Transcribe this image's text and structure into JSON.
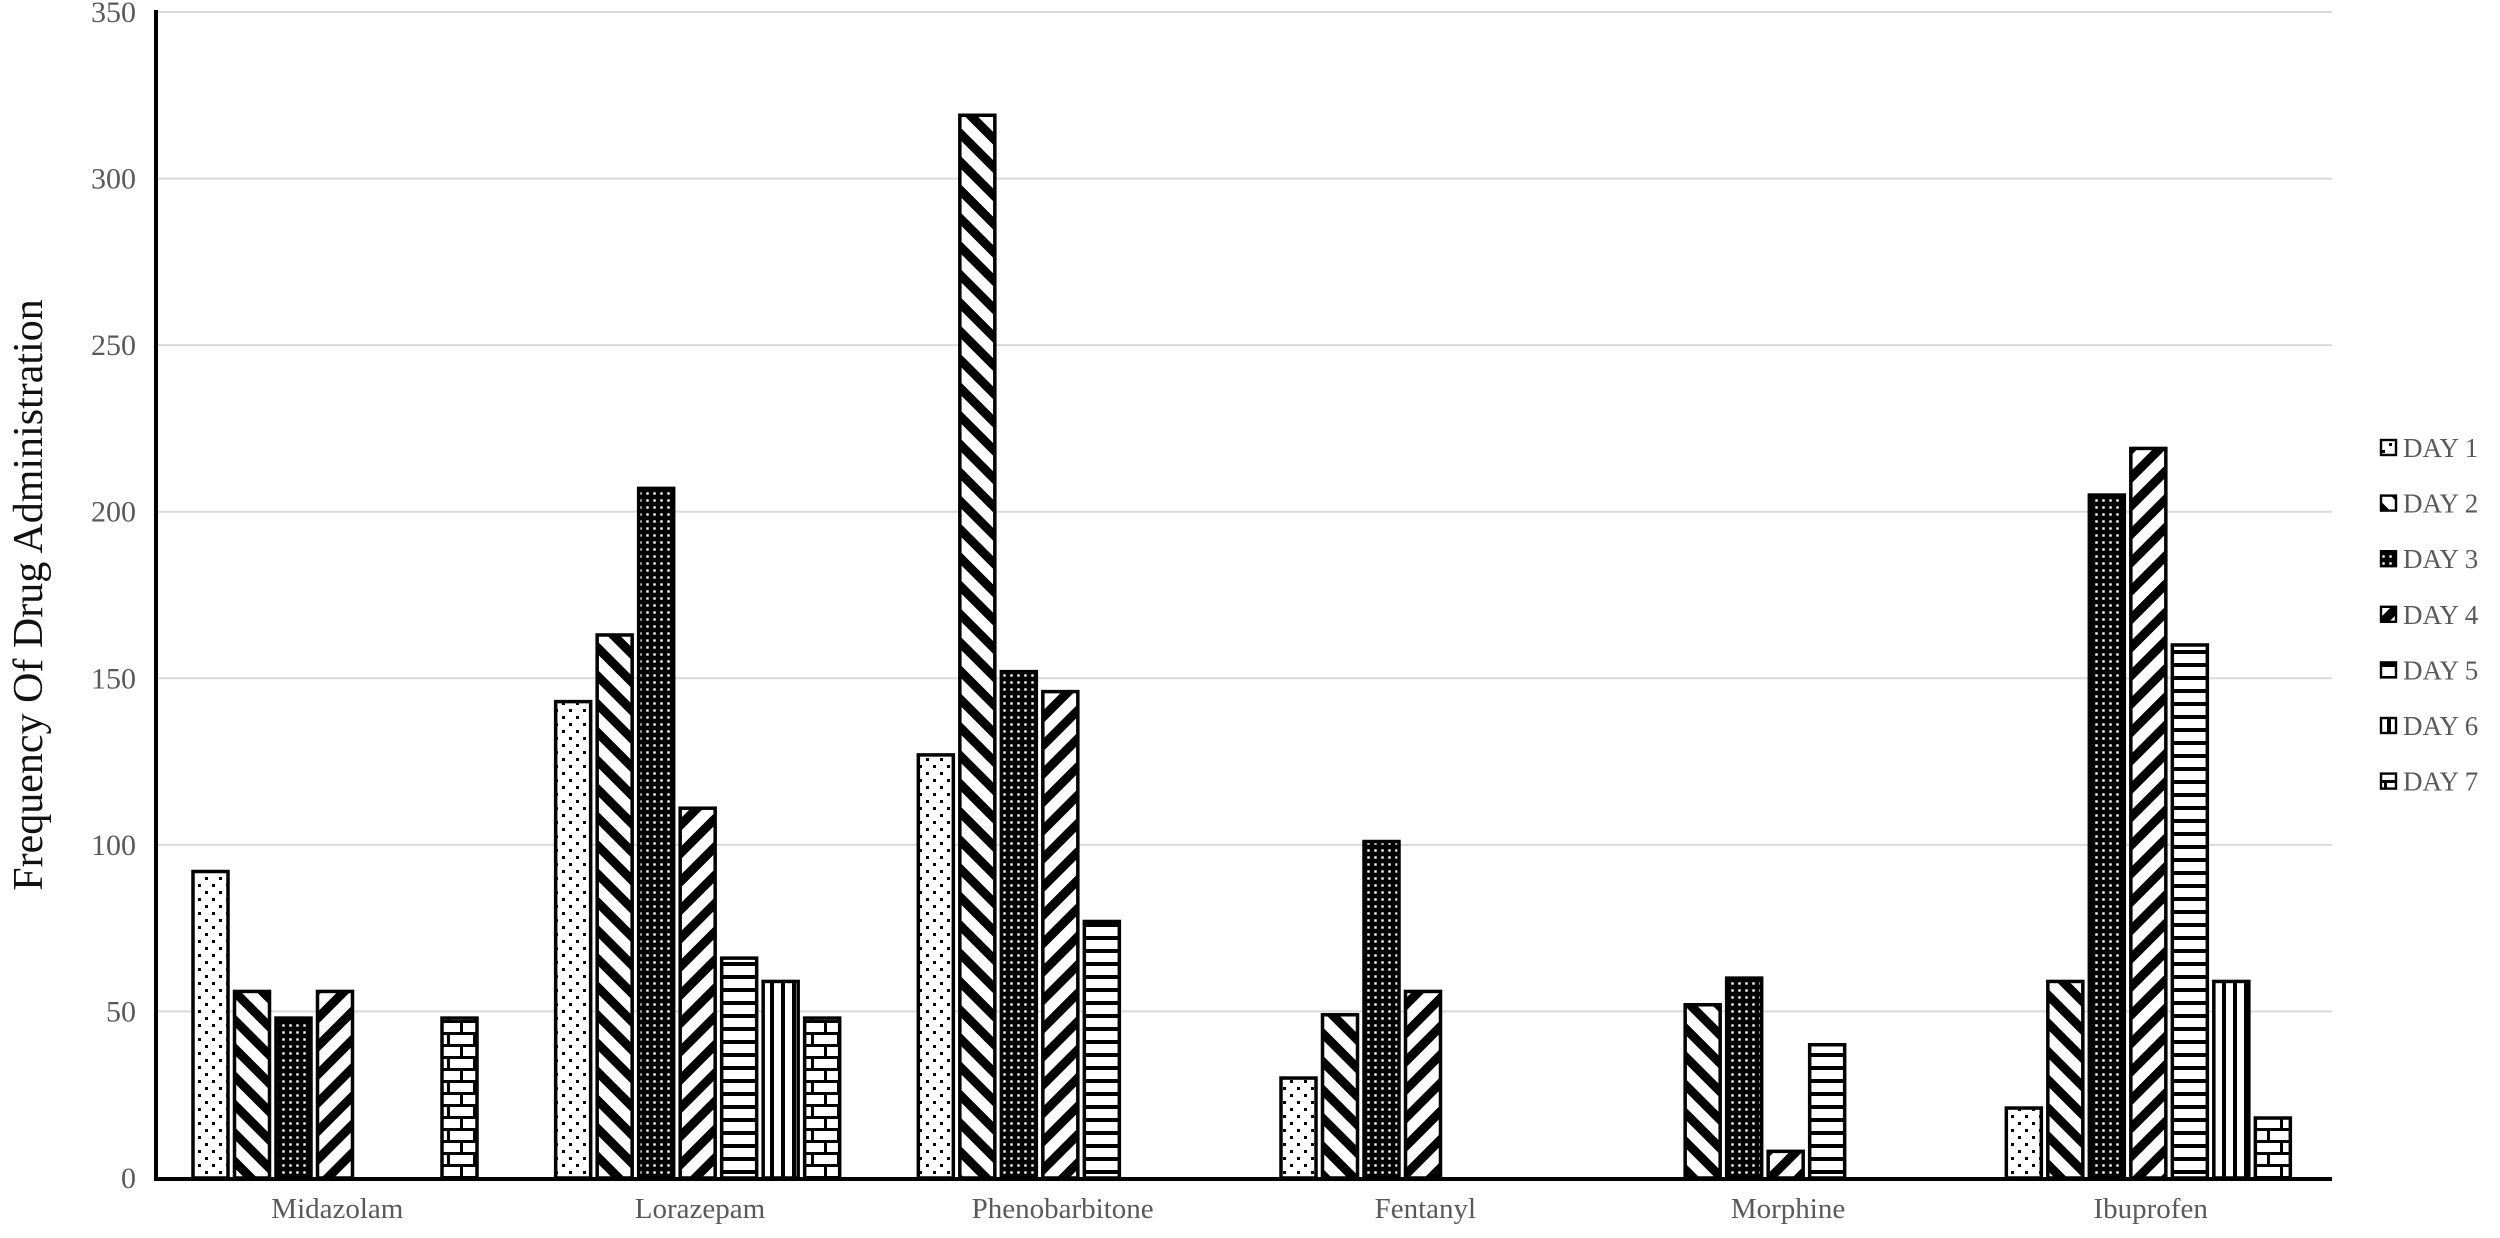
{
  "colors": {
    "background": "#ffffff",
    "bar_fill": "#ffffff",
    "bar_stroke": "#000000",
    "grid": "#d9d9d9",
    "axis": "#000000",
    "tick_label": "#595959",
    "category_label": "#595959",
    "legend_text": "#595959",
    "ylabel_color": "#111111"
  },
  "chart_data": {
    "type": "bar",
    "title": "",
    "xlabel": "",
    "ylabel": "Frequency Of Drug Administration",
    "ylim": [
      0,
      350
    ],
    "yticks": [
      0,
      50,
      100,
      150,
      200,
      250,
      300,
      350
    ],
    "grid": "horizontal",
    "legend_position": "right",
    "categories": [
      "Midazolam",
      "Lorazepam",
      "Phenobarbitone",
      "Fentanyl",
      "Morphine",
      "Ibuprofen"
    ],
    "series": [
      {
        "name": "DAY 1",
        "pattern": "sparse-dots",
        "values": [
          92,
          143,
          127,
          30,
          0,
          21
        ]
      },
      {
        "name": "DAY 2",
        "pattern": "diag-back",
        "values": [
          56,
          163,
          319,
          49,
          52,
          59
        ]
      },
      {
        "name": "DAY 3",
        "pattern": "dense-dots",
        "values": [
          48,
          207,
          152,
          101,
          60,
          205
        ]
      },
      {
        "name": "DAY 4",
        "pattern": "diag-fwd",
        "values": [
          56,
          111,
          146,
          56,
          8,
          219
        ]
      },
      {
        "name": "DAY 5",
        "pattern": "h-lines",
        "values": [
          0,
          66,
          77,
          0,
          40,
          160
        ]
      },
      {
        "name": "DAY 6",
        "pattern": "v-lines",
        "values": [
          0,
          59,
          0,
          0,
          0,
          59
        ]
      },
      {
        "name": "DAY 7",
        "pattern": "brick",
        "values": [
          48,
          48,
          0,
          0,
          0,
          18
        ]
      }
    ]
  }
}
